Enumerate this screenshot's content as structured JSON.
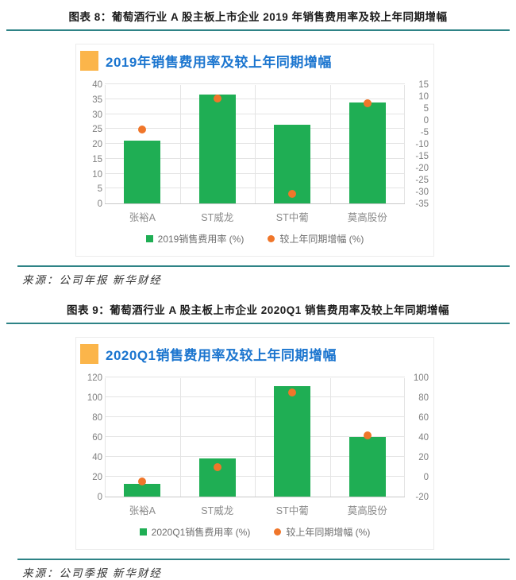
{
  "colors": {
    "bar_green": "#1fae54",
    "point_orange": "#f0762a",
    "chart_title_blue": "#1b75cf",
    "title_marker_orange": "#fbb54a",
    "rule_teal": "#2e8386"
  },
  "figures": [
    {
      "header": "图表 8：葡萄酒行业 A 股主板上市企业 2019 年销售费用率及较上年同期增幅",
      "source": "来源：公司年报  新华财经"
    },
    {
      "header": "图表 9：葡萄酒行业 A 股主板上市企业 2020Q1 销售费用率及较上年同期增幅",
      "source": "来源：公司季报  新华财经"
    }
  ],
  "chart_data": [
    {
      "type": "bar",
      "title": "2019年销售费用率及较上年同期增幅",
      "categories": [
        "张裕A",
        "ST威龙",
        "ST中葡",
        "莫高股份"
      ],
      "series": [
        {
          "name": "2019销售费用率 (%)",
          "kind": "bar",
          "axis": "left",
          "color": "#1fae54",
          "values": [
            21,
            36.5,
            26.5,
            34
          ]
        },
        {
          "name": "较上年同期增幅 (%)",
          "kind": "point",
          "axis": "right",
          "color": "#f0762a",
          "values": [
            -4,
            9,
            -31,
            7
          ]
        }
      ],
      "left_axis": {
        "min": 0,
        "max": 40,
        "step": 5
      },
      "right_axis": {
        "min": -35,
        "max": 15,
        "step": 5
      },
      "grid": true,
      "legend_position": "bottom"
    },
    {
      "type": "bar",
      "title": "2020Q1销售费用率及较上年同期增幅",
      "categories": [
        "张裕A",
        "ST威龙",
        "ST中葡",
        "莫高股份"
      ],
      "series": [
        {
          "name": "2020Q1销售费用率 (%)",
          "kind": "bar",
          "axis": "left",
          "color": "#1fae54",
          "values": [
            12.5,
            38.5,
            111,
            60
          ]
        },
        {
          "name": "较上年同期增幅 (%)",
          "kind": "point",
          "axis": "right",
          "color": "#f0762a",
          "values": [
            -5,
            10,
            85,
            42
          ]
        }
      ],
      "left_axis": {
        "min": 0,
        "max": 120,
        "step": 20
      },
      "right_axis": {
        "min": -20,
        "max": 100,
        "step": 20
      },
      "grid": true,
      "legend_position": "bottom"
    }
  ]
}
